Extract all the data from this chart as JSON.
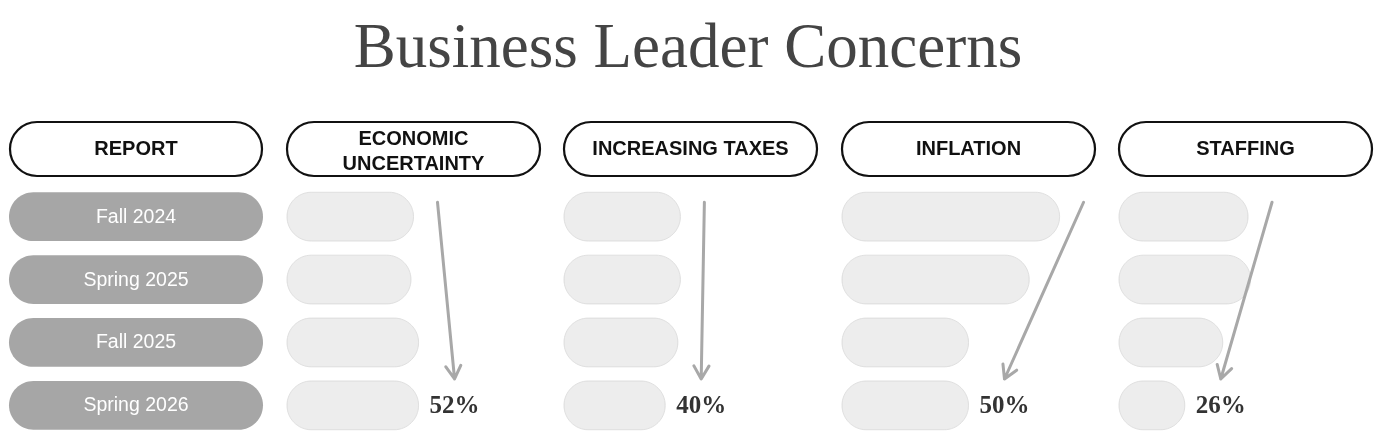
{
  "chart_data": [
    {
      "type": "bar",
      "orientation": "horizontal",
      "title": "Business Leader Concerns",
      "subtitle": "ECONOMIC UNCERTAINTY",
      "ylabel": "REPORT",
      "categories": [
        "Fall 2024",
        "Spring 2025",
        "Fall 2025",
        "Spring 2026"
      ],
      "values": [
        50,
        49,
        52,
        52
      ],
      "value_labels": [
        null,
        null,
        null,
        "52%"
      ],
      "color": "#ededed",
      "tick_labels": "y"
    },
    {
      "type": "bar",
      "orientation": "horizontal",
      "subtitle": "INCREASING TAXES",
      "categories": [
        null,
        null,
        null,
        null
      ],
      "values": [
        46,
        46,
        45,
        40
      ],
      "value_labels": [
        null,
        null,
        null,
        "40%"
      ],
      "color": "#ededed",
      "tick_labels": false
    },
    {
      "type": "bar",
      "orientation": "horizontal",
      "subtitle": "INFLATION",
      "categories": [
        null,
        null,
        null,
        null
      ],
      "values": [
        86,
        74,
        50,
        50
      ],
      "value_labels": [
        null,
        null,
        null,
        "50%"
      ],
      "color": "#ededed",
      "tick_labels": false
    },
    {
      "type": "bar",
      "orientation": "horizontal",
      "subtitle": "STAFFING",
      "categories": [
        null,
        null,
        null,
        null
      ],
      "values": [
        51,
        52,
        41,
        26
      ],
      "value_labels": [
        null,
        null,
        null,
        "26%"
      ],
      "color": "#ededed",
      "tick_labels": false
    }
  ]
}
